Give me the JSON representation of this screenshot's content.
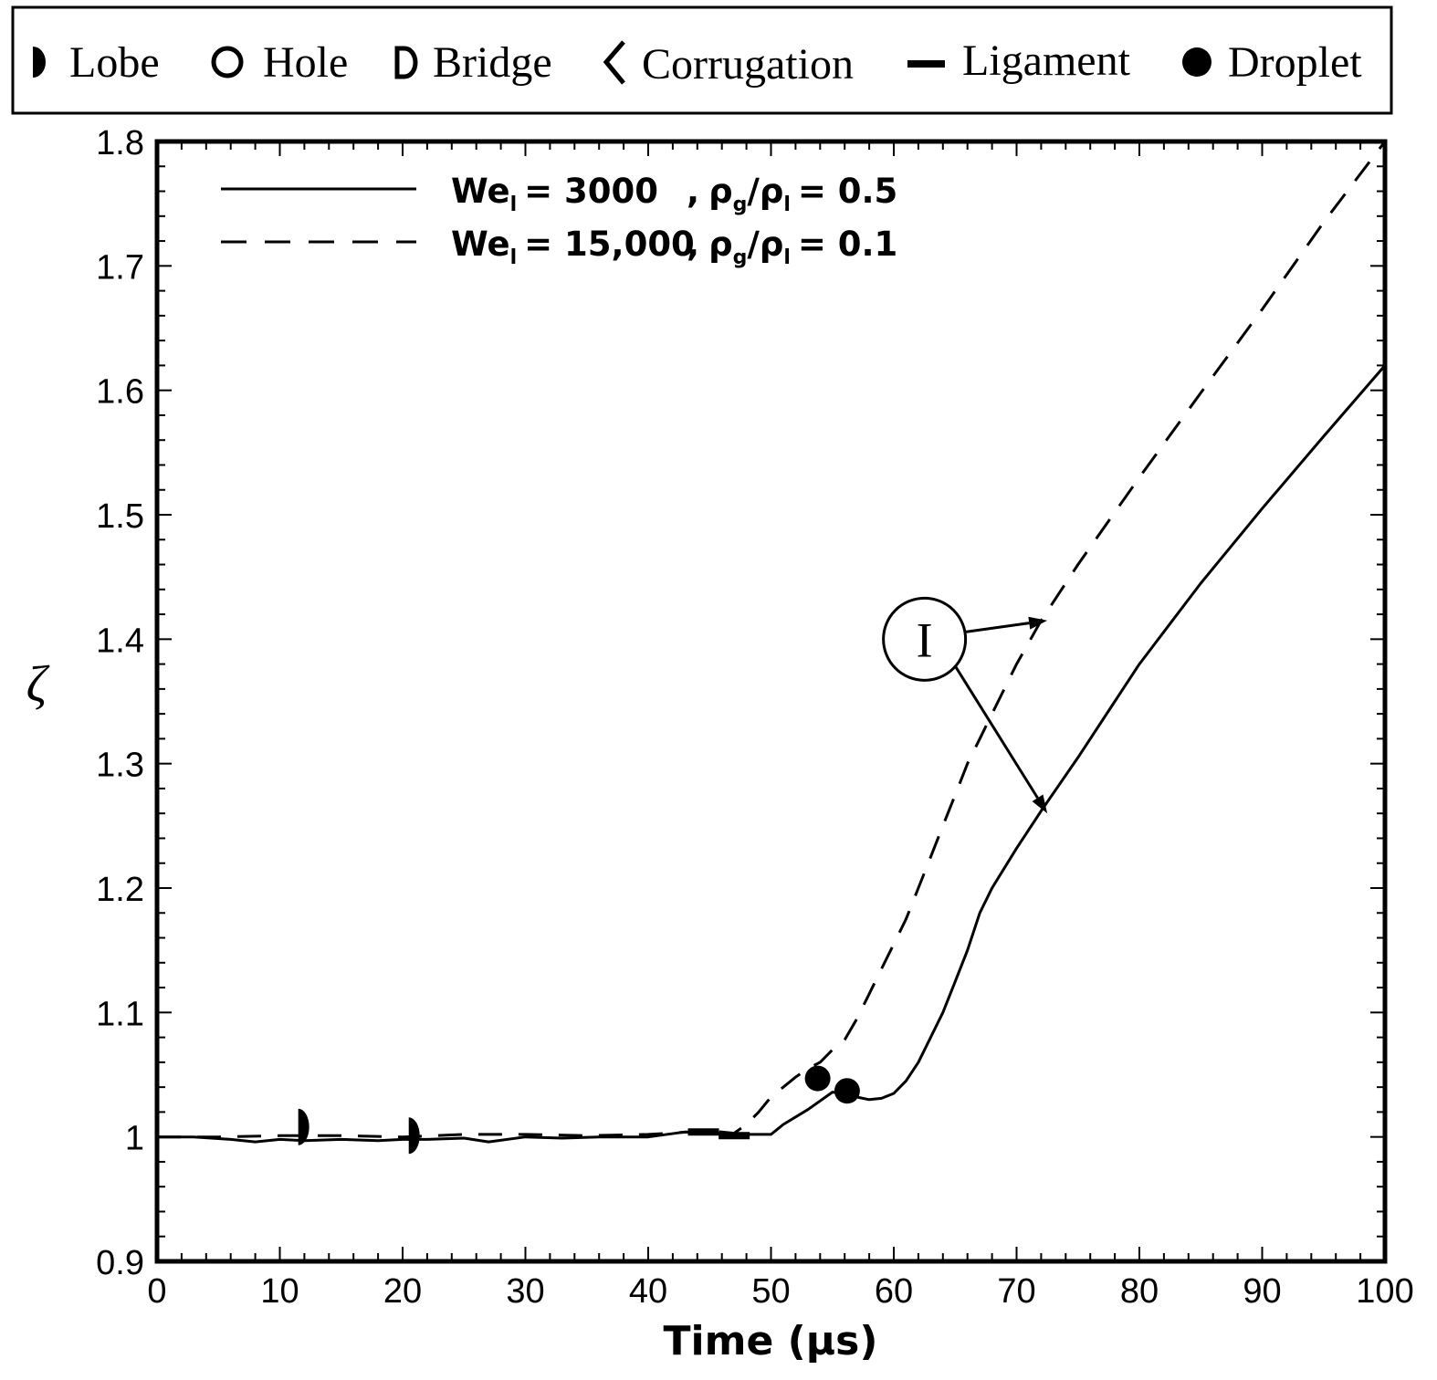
{
  "chart_data": {
    "type": "line",
    "title": "",
    "xlabel": "Time (µs)",
    "ylabel": "ζ",
    "xlim": [
      0,
      100
    ],
    "ylim": [
      0.9,
      1.8
    ],
    "xticks": [
      "0",
      "10",
      "20",
      "30",
      "40",
      "50",
      "60",
      "70",
      "80",
      "90",
      "100"
    ],
    "yticks": [
      "0.9",
      "1",
      "1.1",
      "1.2",
      "1.3",
      "1.4",
      "1.5",
      "1.6",
      "1.7",
      "1.8"
    ],
    "grid": false,
    "feature_legend": [
      {
        "symbol": "lobe",
        "label": "Lobe"
      },
      {
        "symbol": "hole",
        "label": "Hole"
      },
      {
        "symbol": "bridge",
        "label": "Bridge"
      },
      {
        "symbol": "corrugation",
        "label": "Corrugation"
      },
      {
        "symbol": "ligament",
        "label": "Ligament"
      },
      {
        "symbol": "droplet",
        "label": "Droplet"
      }
    ],
    "series": [
      {
        "name": "We_l = 3000 , ρg/ρl = 0.5",
        "legend": {
          "we": "We",
          "sub_l": "l",
          "we_value": "= 3000",
          "sep": ",",
          "rho": "ρ",
          "sub_g": "g",
          "slash": "/",
          "rho2": "ρ",
          "sub_l2": "l",
          "ratio_value": "= 0.5"
        },
        "style": "solid",
        "x": [
          0,
          3,
          6,
          8,
          10,
          12,
          15,
          18,
          20,
          22,
          25,
          27,
          30,
          33,
          36,
          40,
          43,
          45,
          48,
          50,
          51,
          53,
          55,
          56,
          57,
          58,
          59,
          60,
          61,
          62,
          63,
          64,
          65,
          66,
          67,
          68,
          70,
          72,
          75,
          78,
          80,
          85,
          90,
          95,
          100
        ],
        "y": [
          1.0,
          1.0,
          0.998,
          0.996,
          0.998,
          0.997,
          0.998,
          0.997,
          0.998,
          0.998,
          0.999,
          0.996,
          1.0,
          0.999,
          1.0,
          1.0,
          1.004,
          1.003,
          1.002,
          1.002,
          1.01,
          1.022,
          1.036,
          1.035,
          1.032,
          1.03,
          1.031,
          1.035,
          1.045,
          1.06,
          1.08,
          1.1,
          1.125,
          1.15,
          1.18,
          1.2,
          1.232,
          1.262,
          1.305,
          1.35,
          1.38,
          1.445,
          1.505,
          1.563,
          1.62
        ]
      },
      {
        "name": "We_l = 15,000 , ρg/ρl = 0.1",
        "legend": {
          "we": "We",
          "sub_l": "l",
          "we_value": "= 15,000",
          "sep": ",",
          "rho": "ρ",
          "sub_g": "g",
          "slash": "/",
          "rho2": "ρ",
          "sub_l2": "l",
          "ratio_value": "= 0.1"
        },
        "style": "dashed",
        "x": [
          0,
          5,
          10,
          15,
          20,
          25,
          30,
          35,
          40,
          45,
          47,
          48,
          49,
          50,
          51,
          52,
          53,
          54,
          55,
          56,
          57,
          58,
          59,
          60,
          61,
          62,
          63,
          64,
          65,
          66,
          67,
          68,
          70,
          72,
          75,
          80,
          85,
          90,
          95,
          100
        ],
        "y": [
          1.0,
          1.0,
          1.001,
          1.001,
          1.0,
          1.002,
          1.002,
          1.001,
          1.002,
          1.005,
          1.003,
          1.01,
          1.02,
          1.032,
          1.04,
          1.048,
          1.055,
          1.06,
          1.07,
          1.078,
          1.095,
          1.115,
          1.135,
          1.155,
          1.175,
          1.2,
          1.225,
          1.25,
          1.275,
          1.3,
          1.32,
          1.34,
          1.38,
          1.415,
          1.46,
          1.53,
          1.598,
          1.665,
          1.735,
          1.8
        ]
      }
    ],
    "feature_markers": [
      {
        "type": "lobe",
        "x": 11.5,
        "y": 1.008
      },
      {
        "type": "lobe",
        "x": 20.5,
        "y": 1.001
      },
      {
        "type": "ligament",
        "x": 44.5,
        "y": 1.004
      },
      {
        "type": "ligament",
        "x": 47.0,
        "y": 1.001
      },
      {
        "type": "droplet",
        "x": 53.8,
        "y": 1.047
      },
      {
        "type": "droplet",
        "x": 56.2,
        "y": 1.037
      }
    ],
    "annotation": {
      "label": "I",
      "anchor": {
        "x": 62.5,
        "y": 1.4
      },
      "targets": [
        {
          "x": 72.5,
          "y": 1.415
        },
        {
          "x": 72.5,
          "y": 1.26
        }
      ]
    }
  }
}
